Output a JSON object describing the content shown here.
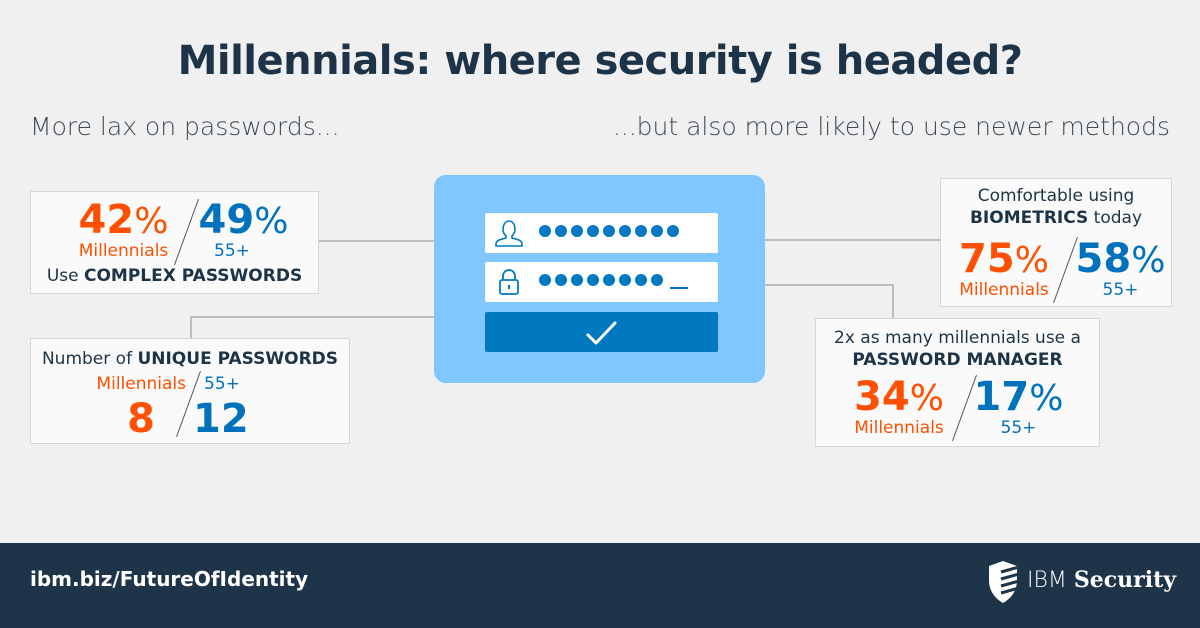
{
  "title": "Millennials: where security is headed?",
  "left_subtitle": "More lax on passwords...",
  "right_subtitle": "...but also more likely to use newer methods",
  "colors": {
    "millennials": "#fe5000",
    "age_55_plus": "#0071bc",
    "panel": "#80c6ff",
    "footer": "#1e3448"
  },
  "complex": {
    "mil_value": "42",
    "mil_unit": "%",
    "mil_label": "Millennials",
    "old_value": "49",
    "old_unit": "%",
    "old_label": "55+",
    "caption_pre": "Use ",
    "caption_bold": "COMPLEX PASSWORDS"
  },
  "unique": {
    "caption_pre": "Number of ",
    "caption_bold": "UNIQUE PASSWORDS",
    "mil_label": "Millennials",
    "old_label": "55+",
    "mil_value": "8",
    "old_value": "12"
  },
  "biometrics": {
    "caption_line1": "Comfortable using",
    "caption_bold": "BIOMETRICS",
    "caption_post": " today",
    "mil_value": "75",
    "mil_unit": "%",
    "mil_label": "Millennials",
    "old_value": "58",
    "old_unit": "%",
    "old_label": "55+"
  },
  "manager": {
    "caption_line1": "2x as many millennials use a",
    "caption_bold": "PASSWORD MANAGER",
    "mil_value": "34",
    "mil_unit": "%",
    "mil_label": "Millennials",
    "old_value": "17",
    "old_unit": "%",
    "old_label": "55+"
  },
  "login": {
    "user_icon": "user-icon",
    "lock_icon": "lock-icon",
    "submit_icon": "checkmark-icon",
    "user_dots": 9,
    "pass_dots": 8
  },
  "footer": {
    "link": "ibm.biz/FutureOfIdentity",
    "brand_light": "IBM ",
    "brand_bold": "Security",
    "logo_icon": "shield-icon"
  }
}
